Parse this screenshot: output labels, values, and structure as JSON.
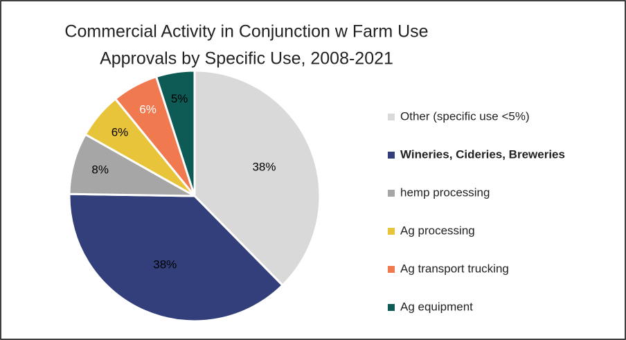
{
  "chart_data": {
    "type": "pie",
    "title": [
      "Commercial Activity in Conjunction w Farm Use",
      "Approvals by Specific Use, 2008-2021"
    ],
    "categories": [
      "Other (specific use <5%)",
      "Wineries, Cideries, Breweries",
      "hemp processing",
      "Ag processing",
      "Ag transport trucking",
      "Ag equipment"
    ],
    "values": [
      38,
      38,
      8,
      6,
      6,
      5
    ],
    "value_labels": [
      "38%",
      "38%",
      "8%",
      "6%",
      "6%",
      "5%"
    ],
    "colors": [
      "#d9d9d9",
      "#333f7a",
      "#a6a6a6",
      "#e8c43a",
      "#f0794f",
      "#0e5a55"
    ],
    "label_colors": [
      "#000000",
      "#000000",
      "#000000",
      "#000000",
      "#ffffff",
      "#000000"
    ],
    "legend_bold": [
      false,
      true,
      false,
      false,
      false,
      false
    ],
    "legend": "right"
  }
}
